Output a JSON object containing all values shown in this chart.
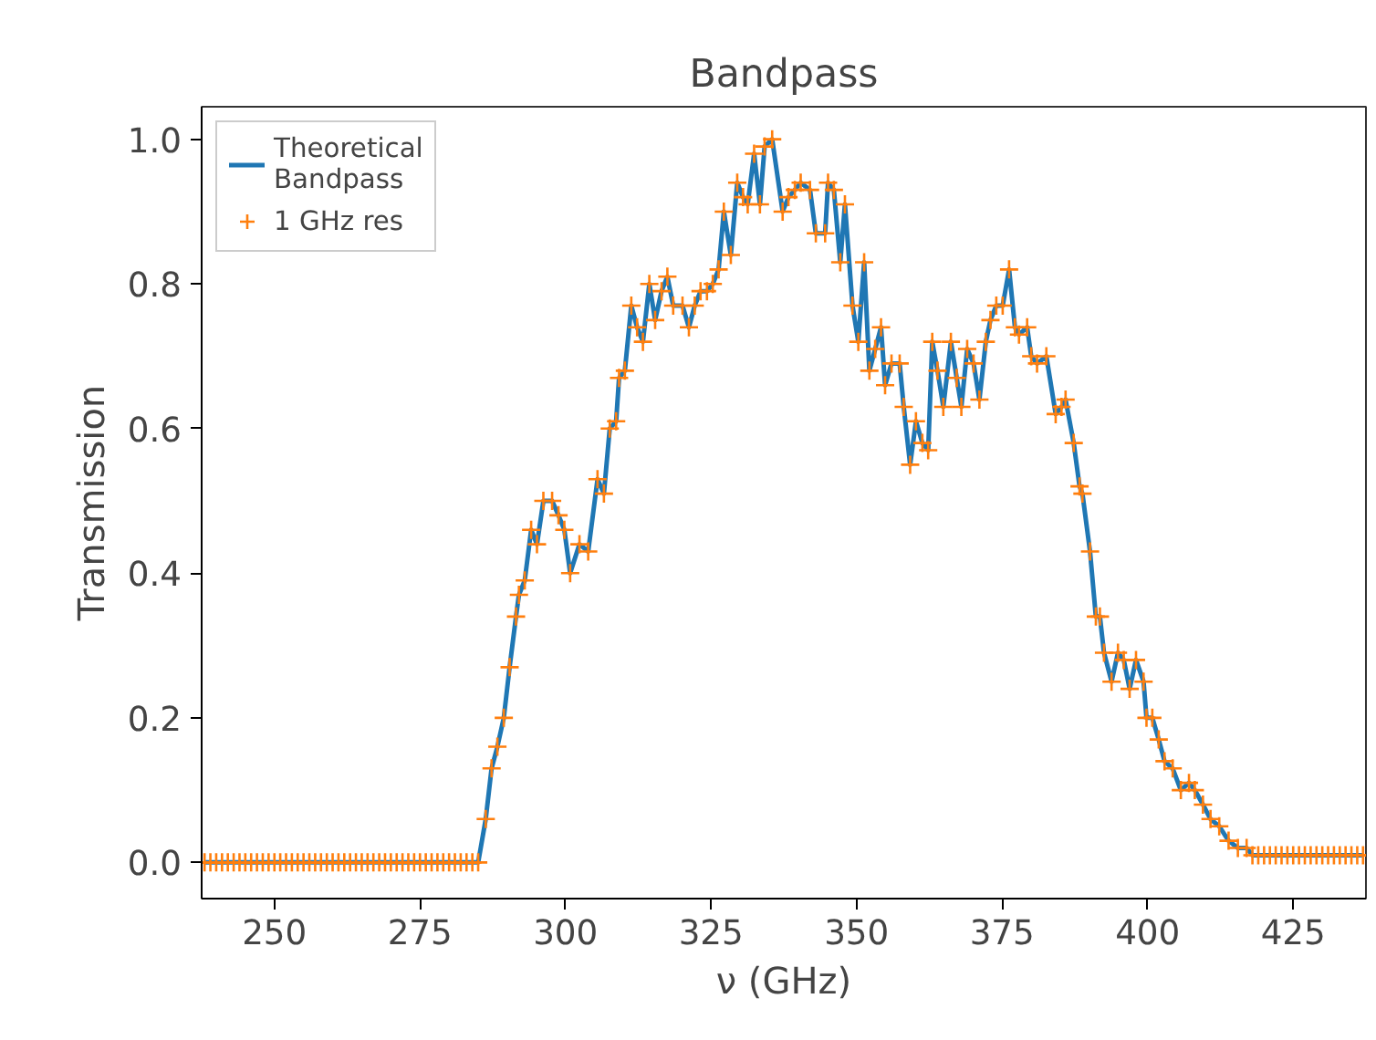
{
  "chart_data": {
    "type": "line",
    "title": "Bandpass",
    "xlabel": "ν (GHz)",
    "ylabel": "Transmission",
    "x": [
      238,
      239,
      240,
      241,
      242,
      243,
      244,
      245,
      246,
      247,
      248,
      249,
      250,
      251,
      252,
      253,
      254,
      255,
      256,
      257,
      258,
      259,
      260,
      261,
      262,
      263,
      264,
      265,
      266,
      267,
      268,
      269,
      270,
      271,
      272,
      273,
      274,
      275,
      276,
      277,
      278,
      279,
      280,
      281,
      282,
      283,
      284,
      285,
      286.3,
      287.3,
      288.3,
      289.4,
      290.4,
      291.5,
      292,
      293,
      294.1,
      295.1,
      296.2,
      297.7,
      298.8,
      299.8,
      300.8,
      302.4,
      303.9,
      305.5,
      306.6,
      307.6,
      308.7,
      309.2,
      310.2,
      311.3,
      312.3,
      313.3,
      314.4,
      315.4,
      316.5,
      317.5,
      318.5,
      320.1,
      321.2,
      322.2,
      323.2,
      324.3,
      325.3,
      326.3,
      327.2,
      328.4,
      329.5,
      330.5,
      331.3,
      332.4,
      333.4,
      334.2,
      335.5,
      337.3,
      338.3,
      339.4,
      340.4,
      342,
      343,
      344.6,
      345.1,
      346.1,
      347.2,
      348,
      349.3,
      350.3,
      351.3,
      352.2,
      353.2,
      354.2,
      354.9,
      356,
      357.4,
      358.1,
      359.2,
      360.2,
      361.3,
      362.3,
      363,
      363.9,
      364.9,
      366.2,
      367.2,
      368,
      369,
      370.1,
      371.1,
      372.2,
      373,
      374,
      375.1,
      376.2,
      377.2,
      377.9,
      379.3,
      380,
      381,
      382.6,
      384.2,
      385.2,
      385.9,
      387.3,
      388.3,
      388.8,
      390.1,
      391.1,
      391.8,
      392.5,
      393.8,
      394.9,
      395.9,
      396.9,
      398,
      399.3,
      399.8,
      400.8,
      401.9,
      402.9,
      404.3,
      405.7,
      407.1,
      408.1,
      409.5,
      410.8,
      412.3,
      413.9,
      415.5,
      417,
      418,
      419,
      420,
      421,
      422,
      423,
      424,
      425,
      426,
      427,
      428,
      429,
      430,
      431,
      432,
      433,
      434,
      435,
      436,
      437
    ],
    "series": [
      {
        "name": "Theoretical\nBandpass",
        "color": "#1f77b4",
        "marker": "none",
        "values": [
          0,
          0,
          0,
          0,
          0,
          0,
          0,
          0,
          0,
          0,
          0,
          0,
          0,
          0,
          0,
          0,
          0,
          0,
          0,
          0,
          0,
          0,
          0,
          0,
          0,
          0,
          0,
          0,
          0,
          0,
          0,
          0,
          0,
          0,
          0,
          0,
          0,
          0,
          0,
          0,
          0,
          0,
          0,
          0,
          0,
          0,
          0,
          0,
          0.06,
          0.13,
          0.16,
          0.2,
          0.27,
          0.34,
          0.37,
          0.39,
          0.46,
          0.44,
          0.5,
          0.5,
          0.48,
          0.46,
          0.4,
          0.44,
          0.43,
          0.53,
          0.51,
          0.6,
          0.61,
          0.67,
          0.68,
          0.77,
          0.74,
          0.72,
          0.8,
          0.75,
          0.79,
          0.81,
          0.77,
          0.77,
          0.74,
          0.77,
          0.79,
          0.79,
          0.8,
          0.82,
          0.9,
          0.84,
          0.94,
          0.92,
          0.91,
          0.98,
          0.91,
          0.99,
          1.0,
          0.9,
          0.92,
          0.93,
          0.94,
          0.93,
          0.87,
          0.87,
          0.94,
          0.93,
          0.83,
          0.91,
          0.77,
          0.72,
          0.83,
          0.68,
          0.71,
          0.74,
          0.66,
          0.69,
          0.69,
          0.63,
          0.55,
          0.61,
          0.58,
          0.57,
          0.72,
          0.68,
          0.63,
          0.72,
          0.67,
          0.63,
          0.71,
          0.69,
          0.64,
          0.72,
          0.75,
          0.77,
          0.77,
          0.82,
          0.74,
          0.73,
          0.74,
          0.7,
          0.69,
          0.7,
          0.62,
          0.63,
          0.64,
          0.58,
          0.52,
          0.51,
          0.43,
          0.34,
          0.34,
          0.29,
          0.25,
          0.29,
          0.28,
          0.24,
          0.28,
          0.25,
          0.2,
          0.2,
          0.17,
          0.14,
          0.13,
          0.1,
          0.11,
          0.1,
          0.08,
          0.06,
          0.05,
          0.03,
          0.02,
          0.02,
          0.01,
          0.01,
          0.01,
          0.01,
          0.01,
          0.01,
          0.01,
          0.01,
          0.01,
          0.01,
          0.01,
          0.01,
          0.01,
          0.01,
          0.01,
          0.01,
          0.01,
          0.01,
          0.01,
          0.01
        ]
      },
      {
        "name": "1 GHz res",
        "type": "scatter",
        "color": "#ff7f0e",
        "marker": "cross",
        "values": [
          0,
          0,
          0,
          0,
          0,
          0,
          0,
          0,
          0,
          0,
          0,
          0,
          0,
          0,
          0,
          0,
          0,
          0,
          0,
          0,
          0,
          0,
          0,
          0,
          0,
          0,
          0,
          0,
          0,
          0,
          0,
          0,
          0,
          0,
          0,
          0,
          0,
          0,
          0,
          0,
          0,
          0,
          0,
          0,
          0,
          0,
          0,
          0,
          0.06,
          0.13,
          0.16,
          0.2,
          0.27,
          0.34,
          0.37,
          0.39,
          0.46,
          0.44,
          0.5,
          0.5,
          0.48,
          0.46,
          0.4,
          0.44,
          0.43,
          0.53,
          0.51,
          0.6,
          0.61,
          0.67,
          0.68,
          0.77,
          0.74,
          0.72,
          0.8,
          0.75,
          0.79,
          0.81,
          0.77,
          0.77,
          0.74,
          0.77,
          0.79,
          0.79,
          0.8,
          0.82,
          0.9,
          0.84,
          0.94,
          0.92,
          0.91,
          0.98,
          0.91,
          0.99,
          1.0,
          0.9,
          0.92,
          0.93,
          0.94,
          0.93,
          0.87,
          0.87,
          0.94,
          0.93,
          0.83,
          0.91,
          0.77,
          0.72,
          0.83,
          0.68,
          0.71,
          0.74,
          0.66,
          0.69,
          0.69,
          0.63,
          0.55,
          0.61,
          0.58,
          0.57,
          0.72,
          0.68,
          0.63,
          0.72,
          0.67,
          0.63,
          0.71,
          0.69,
          0.64,
          0.72,
          0.75,
          0.77,
          0.77,
          0.82,
          0.74,
          0.73,
          0.74,
          0.7,
          0.69,
          0.7,
          0.62,
          0.63,
          0.64,
          0.58,
          0.52,
          0.51,
          0.43,
          0.34,
          0.34,
          0.29,
          0.25,
          0.29,
          0.28,
          0.24,
          0.28,
          0.25,
          0.2,
          0.2,
          0.17,
          0.14,
          0.13,
          0.1,
          0.11,
          0.1,
          0.08,
          0.06,
          0.05,
          0.03,
          0.02,
          0.02,
          0.01,
          0.01,
          0.01,
          0.01,
          0.01,
          0.01,
          0.01,
          0.01,
          0.01,
          0.01,
          0.01,
          0.01,
          0.01,
          0.01,
          0.01,
          0.01,
          0.01,
          0.01,
          0.01,
          0.01
        ]
      }
    ],
    "xlim": [
      237.5,
      437.5
    ],
    "ylim": [
      -0.05,
      1.045
    ],
    "xticks": [
      250,
      275,
      300,
      325,
      350,
      375,
      400,
      425
    ],
    "yticks": [
      {
        "value": 0,
        "label": "0.0"
      },
      0.2,
      0.4,
      0.6,
      0.8,
      {
        "value": 1,
        "label": "1.0"
      }
    ],
    "legend": "top left",
    "grid": false
  }
}
